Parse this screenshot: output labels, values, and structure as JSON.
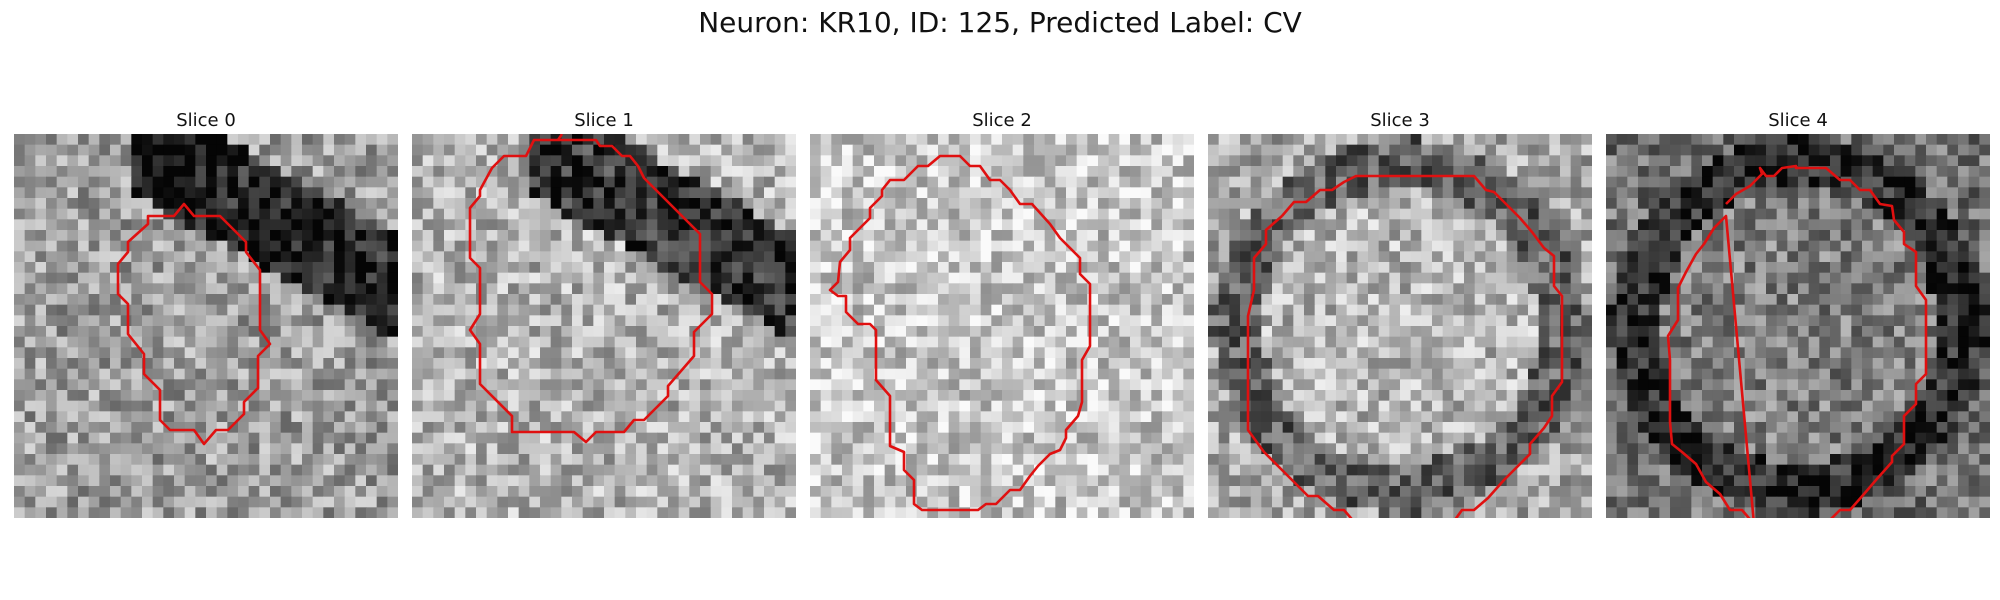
{
  "figure": {
    "title": "Neuron: KR10, ID: 125, Predicted Label: CV"
  },
  "panels": [
    {
      "title": "Slice 0",
      "seed": 11,
      "base": 0.62,
      "dark_band": true,
      "ring": false,
      "contour": "slice0"
    },
    {
      "title": "Slice 1",
      "seed": 23,
      "base": 0.7,
      "dark_band": true,
      "ring": false,
      "contour": "slice1"
    },
    {
      "title": "Slice 2",
      "seed": 37,
      "base": 0.78,
      "dark_band": false,
      "ring": false,
      "contour": "slice2"
    },
    {
      "title": "Slice 3",
      "seed": 41,
      "base": 0.66,
      "dark_band": false,
      "ring": true,
      "contour": "slice3"
    },
    {
      "title": "Slice 4",
      "seed": 53,
      "base": 0.45,
      "dark_band": false,
      "ring": true,
      "contour": "slice4"
    }
  ],
  "colors": {
    "contour": "#e01010",
    "background": "#ffffff"
  }
}
